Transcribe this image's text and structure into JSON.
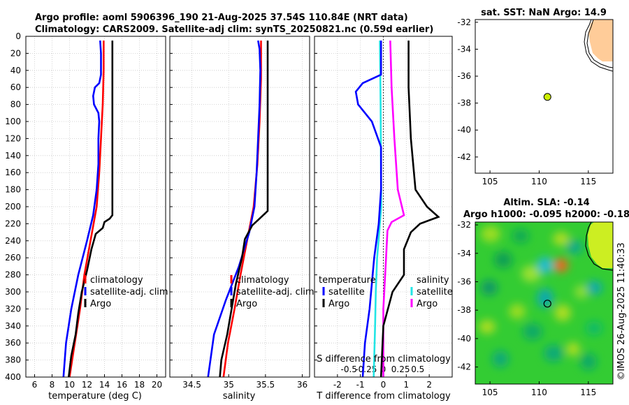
{
  "header": {
    "line1": "Argo profile: aoml 5906396_190 21-Aug-2025 37.54S 110.84E (NRT data)",
    "line2": "Climatology: CARS2009. Satellite-adj clim: synTS_20250821.nc (0.59d earlier)"
  },
  "colors": {
    "climatology": "#ff0000",
    "satellite": "#0000ff",
    "argo": "#000000",
    "s_satellite": "#22e5e5",
    "s_argo": "#ff00ff",
    "land": "#ffcc99",
    "sla_field": "#33cc33",
    "float_marker": "#ccee00"
  },
  "chart_data": [
    {
      "id": "temperature",
      "type": "line",
      "xlabel": "temperature (deg C)",
      "ylabel": "",
      "xlim": [
        5,
        21
      ],
      "ylim": [
        0,
        400
      ],
      "x_ticks": [
        6,
        8,
        10,
        12,
        14,
        16,
        18,
        20
      ],
      "x_tick_labels": [
        "6",
        "8",
        "10",
        "12",
        "14",
        "16",
        "18",
        "20"
      ],
      "y_ticks": [
        0,
        20,
        40,
        60,
        80,
        100,
        120,
        140,
        160,
        180,
        200,
        220,
        240,
        260,
        280,
        300,
        320,
        340,
        360,
        380,
        400
      ],
      "y_tick_labels": [
        "0",
        "20",
        "40",
        "60",
        "80",
        "100",
        "120",
        "140",
        "160",
        "180",
        "200",
        "220",
        "240",
        "260",
        "280",
        "300",
        "320",
        "340",
        "360",
        "380",
        "400"
      ],
      "grid": true,
      "legend": [
        "climatology",
        "satellite-adj. clim",
        "Argo"
      ],
      "series": [
        {
          "name": "climatology",
          "color": "#ff0000",
          "points": [
            [
              13.9,
              5
            ],
            [
              13.9,
              40
            ],
            [
              13.8,
              80
            ],
            [
              13.6,
              120
            ],
            [
              13.4,
              160
            ],
            [
              13.1,
              200
            ],
            [
              12.4,
              240
            ],
            [
              11.7,
              280
            ],
            [
              11.2,
              320
            ],
            [
              10.6,
              360
            ],
            [
              10.0,
              400
            ]
          ]
        },
        {
          "name": "satellite-adj. clim",
          "color": "#0000ff",
          "points": [
            [
              13.5,
              5
            ],
            [
              13.6,
              20
            ],
            [
              13.6,
              45
            ],
            [
              13.4,
              55
            ],
            [
              12.9,
              60
            ],
            [
              12.7,
              70
            ],
            [
              12.8,
              80
            ],
            [
              13.3,
              90
            ],
            [
              13.4,
              100
            ],
            [
              13.3,
              120
            ],
            [
              13.3,
              150
            ],
            [
              13.1,
              180
            ],
            [
              12.7,
              210
            ],
            [
              12.0,
              240
            ],
            [
              11.0,
              280
            ],
            [
              10.2,
              320
            ],
            [
              9.6,
              360
            ],
            [
              9.3,
              400
            ]
          ]
        },
        {
          "name": "Argo",
          "color": "#000000",
          "points": [
            [
              14.9,
              5
            ],
            [
              14.9,
              210
            ],
            [
              14.6,
              214
            ],
            [
              14.0,
              218
            ],
            [
              13.8,
              225
            ],
            [
              13.0,
              232
            ],
            [
              12.5,
              250
            ],
            [
              12.0,
              275
            ],
            [
              11.4,
              300
            ],
            [
              11.0,
              325
            ],
            [
              10.7,
              350
            ],
            [
              10.2,
              375
            ],
            [
              9.9,
              400
            ]
          ]
        }
      ]
    },
    {
      "id": "salinity",
      "type": "line",
      "xlabel": "salinity",
      "ylabel": "",
      "xlim": [
        34.2,
        36.1
      ],
      "ylim": [
        0,
        400
      ],
      "x_ticks": [
        34.5,
        35,
        35.5,
        36
      ],
      "x_tick_labels": [
        "34.5",
        "35",
        "35.5",
        "36"
      ],
      "grid": true,
      "legend": [
        "climatology",
        "satellite-adj. clim",
        "Argo"
      ],
      "series": [
        {
          "name": "climatology",
          "color": "#ff0000",
          "points": [
            [
              35.44,
              5
            ],
            [
              35.44,
              50
            ],
            [
              35.42,
              100
            ],
            [
              35.39,
              150
            ],
            [
              35.34,
              200
            ],
            [
              35.25,
              240
            ],
            [
              35.16,
              280
            ],
            [
              35.08,
              320
            ],
            [
              34.99,
              360
            ],
            [
              34.93,
              400
            ]
          ]
        },
        {
          "name": "satellite-adj. clim",
          "color": "#0000ff",
          "points": [
            [
              35.4,
              5
            ],
            [
              35.42,
              15
            ],
            [
              35.43,
              40
            ],
            [
              35.42,
              80
            ],
            [
              35.4,
              120
            ],
            [
              35.38,
              160
            ],
            [
              35.35,
              200
            ],
            [
              35.28,
              230
            ],
            [
              35.14,
              270
            ],
            [
              34.96,
              310
            ],
            [
              34.8,
              350
            ],
            [
              34.72,
              400
            ]
          ]
        },
        {
          "name": "Argo",
          "color": "#000000",
          "points": [
            [
              35.53,
              5
            ],
            [
              35.53,
              205
            ],
            [
              35.42,
              214
            ],
            [
              35.32,
              222
            ],
            [
              35.22,
              238
            ],
            [
              35.18,
              260
            ],
            [
              35.1,
              290
            ],
            [
              35.04,
              320
            ],
            [
              34.98,
              350
            ],
            [
              34.9,
              380
            ],
            [
              34.88,
              400
            ]
          ]
        }
      ]
    },
    {
      "id": "difference",
      "type": "line",
      "xlabel": "T difference from climatology",
      "top_xlabel": "S difference from climatology",
      "ylabel": "",
      "xlim": [
        -3,
        3
      ],
      "ylim": [
        0,
        400
      ],
      "x_ticks": [
        -2,
        -1,
        0,
        1,
        2
      ],
      "x_tick_labels": [
        "-2",
        "-1",
        "0",
        "1",
        "2"
      ],
      "s_ticks": [
        -0.5,
        -0.25,
        0,
        0.25,
        0.5
      ],
      "s_tick_labels": [
        "-0.5",
        "-0.25",
        "0",
        "0.25",
        "0.5"
      ],
      "grid": true,
      "legend_temperature_title": "temperature",
      "legend_salinity_title": "salinity",
      "legend_temperature": [
        "satellite",
        "Argo"
      ],
      "legend_salinity": [
        "satellite",
        "Argo"
      ],
      "series": [
        {
          "name": "T satellite",
          "color": "#0000ff",
          "points": [
            [
              -0.1,
              5
            ],
            [
              -0.1,
              45
            ],
            [
              -0.9,
              55
            ],
            [
              -1.2,
              65
            ],
            [
              -1.1,
              80
            ],
            [
              -0.5,
              100
            ],
            [
              -0.1,
              130
            ],
            [
              -0.1,
              180
            ],
            [
              -0.2,
              220
            ],
            [
              -0.4,
              260
            ],
            [
              -0.6,
              320
            ],
            [
              -0.8,
              360
            ],
            [
              -0.9,
              400
            ]
          ]
        },
        {
          "name": "T Argo",
          "color": "#000000",
          "points": [
            [
              1.1,
              5
            ],
            [
              1.1,
              60
            ],
            [
              1.2,
              120
            ],
            [
              1.4,
              180
            ],
            [
              1.9,
              200
            ],
            [
              2.4,
              212
            ],
            [
              1.6,
              220
            ],
            [
              1.2,
              230
            ],
            [
              0.9,
              250
            ],
            [
              0.9,
              280
            ],
            [
              0.4,
              300
            ],
            [
              0.0,
              340
            ],
            [
              -0.1,
              400
            ]
          ]
        },
        {
          "name": "S satellite",
          "color": "#22e5e5",
          "points": [
            [
              -0.05,
              5
            ],
            [
              -0.04,
              80
            ],
            [
              -0.03,
              200
            ],
            [
              -0.06,
              230
            ],
            [
              -0.09,
              260
            ],
            [
              -0.11,
              300
            ],
            [
              -0.12,
              340
            ],
            [
              -0.14,
              400
            ]
          ]
        },
        {
          "name": "S Argo",
          "color": "#ff00ff",
          "points": [
            [
              0.1,
              5
            ],
            [
              0.12,
              60
            ],
            [
              0.16,
              120
            ],
            [
              0.21,
              180
            ],
            [
              0.3,
              210
            ],
            [
              0.12,
              218
            ],
            [
              0.06,
              228
            ],
            [
              0.04,
              260
            ],
            [
              0.0,
              320
            ],
            [
              0.0,
              400
            ]
          ]
        }
      ]
    },
    {
      "id": "sst_map",
      "type": "scatter",
      "title": "sat. SST: NaN Argo: 14.9",
      "xlim": [
        103.5,
        117.5
      ],
      "ylim": [
        -43.2,
        -31.8
      ],
      "x_ticks": [
        105,
        110,
        115
      ],
      "x_tick_labels": [
        "105",
        "110",
        "115"
      ],
      "y_ticks": [
        -32,
        -34,
        -36,
        -38,
        -40,
        -42
      ],
      "y_tick_labels": [
        "-32",
        "-34",
        "-36",
        "-38",
        "-40",
        "-42"
      ],
      "float_position": [
        110.84,
        -37.54
      ]
    },
    {
      "id": "sla_map",
      "type": "heatmap",
      "title_line1": "Altim. SLA: -0.14",
      "title_line2": "Argo h1000: -0.095 h2000: -0.18",
      "xlim": [
        103.5,
        117.5
      ],
      "ylim": [
        -43.2,
        -31.8
      ],
      "x_ticks": [
        105,
        110,
        115
      ],
      "x_tick_labels": [
        "105",
        "110",
        "115"
      ],
      "y_ticks": [
        -32,
        -34,
        -36,
        -38,
        -40,
        -42
      ],
      "y_tick_labels": [
        "-32",
        "-34",
        "-36",
        "-38",
        "-40",
        "-42"
      ],
      "float_position": [
        110.84,
        -37.54
      ]
    }
  ],
  "footer": {
    "credit": "©IMOS 26-Aug-2025 11:40:33"
  }
}
